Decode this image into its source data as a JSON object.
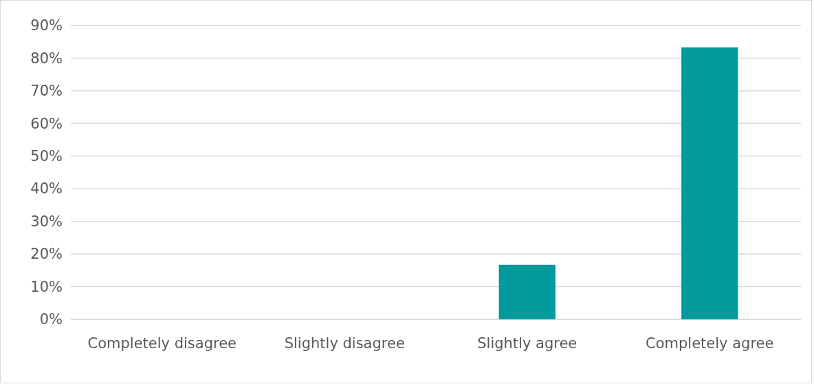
{
  "chart_data": {
    "type": "bar",
    "categories": [
      "Completely disagree",
      "Slightly disagree",
      "Slightly agree",
      "Completely agree"
    ],
    "values": [
      0,
      0,
      16.7,
      83.3
    ],
    "color": "#039a9e",
    "ylim": [
      0,
      90
    ],
    "yticks": [
      {
        "value": 0,
        "label": "0%"
      },
      {
        "value": 10,
        "label": "10%"
      },
      {
        "value": 20,
        "label": "20%"
      },
      {
        "value": 30,
        "label": "30%"
      },
      {
        "value": 40,
        "label": "40%"
      },
      {
        "value": 50,
        "label": "50%"
      },
      {
        "value": 60,
        "label": "60%"
      },
      {
        "value": 70,
        "label": "70%"
      },
      {
        "value": 80,
        "label": "80%"
      },
      {
        "value": 90,
        "label": "90%"
      }
    ],
    "grid": "y"
  }
}
